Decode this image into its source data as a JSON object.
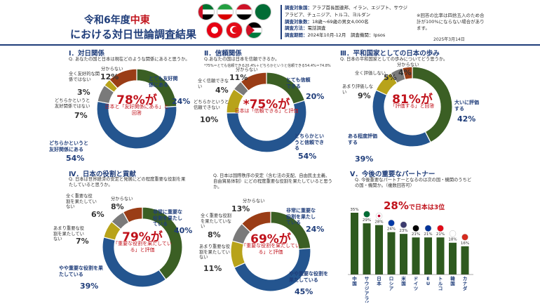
{
  "header": {
    "title_prefix": "令和6年度",
    "title_highlight": "中東",
    "title_line2": "における対日世論調査結果",
    "survey_lines": [
      {
        "label": "調査対象国：",
        "text": "アラブ首長国連邦、イラン、エジプト、サウジアラビア、チュニジア、トルコ、ヨルダン"
      },
      {
        "label": "調査対象数：",
        "text": "18歳～69歳の男女4,000名"
      },
      {
        "label": "調査方法：",
        "text": "電話調査"
      },
      {
        "label": "調査期間：",
        "text": "2024年10月-12月　調査機関：Ipsos"
      }
    ],
    "note": "※回答の比率は四捨五入のため合計が100%にならない場合があります。",
    "date": "2025年3月14日",
    "flags": [
      "uae-flag-icon",
      "iran-flag-icon",
      "egypt-flag-icon",
      "saudi-flag-icon",
      "tunisia-flag-icon",
      "turkey-flag-icon",
      "jordan-flag-icon"
    ]
  },
  "s1": {
    "title": "Ⅰ．対日関係",
    "question": "Q. あなたの国と日本は現在どのような関係にあると思うか。",
    "labels": {
      "very": "とても友好関係にある",
      "somewhat": "どちらかというと友好関係にある",
      "somewhat_not": "どちらかというと友好関係ではない",
      "not": "全く友好的な関係ではない",
      "dk": "分からない"
    },
    "center_big": "78%が",
    "center_text": "日本と「友好関係にある」と回答"
  },
  "s2": {
    "title": "Ⅱ．信頼関係",
    "question": "Q.あなたの国は日本を信頼できるか。",
    "subnote": "*75%＝とても信頼できる20.4%＋どちらかというと信頼できる54.4%＝74.8%",
    "labels": {
      "very": "とても信頼できる",
      "somewhat": "どちらかというと信頼できる",
      "somewhat_not": "どちらかというと信頼できない",
      "not": "全く信頼できない",
      "dk": "分からない"
    },
    "center_big": "*75%が",
    "center_text": "日本は「信頼できる」と評価"
  },
  "s3": {
    "title": "Ⅲ．平和国家としての日本の歩み",
    "question": "Q. 日本の平和国家としての歩みについてどう思うか。",
    "labels": {
      "high": "大いに評価する",
      "some": "ある程度評価する",
      "little": "あまり評価しない",
      "not": "全く評価しない",
      "dk": "分からない"
    },
    "center_big": "81%が",
    "center_text": "「評価する」と回答"
  },
  "s4": {
    "title": "Ⅳ．日本の役割と貢献",
    "question1": "Q. 日本は世界経済の安定と発展にどの程度重要な役割を果たしていると思うか。",
    "question2": "Q. 日本は国際秩序の安定（含む法の支配、自由民主主義、自由貿易体制）にどの程度重要な役割を果たしていると思うか。",
    "labels": {
      "very": "非常に重要な役割を果たしている",
      "some": "やや重要な役割を果たしている",
      "little": "あまり重要な役割を果たしていない",
      "not": "全く重要な役割を果たしていない",
      "dk": "分からない"
    },
    "left_center_big": "79%が",
    "left_center_text": "「重要な役割を果たしている」と評価",
    "right_center_big": "69%が",
    "right_center_text": "「重要な役割を果たしている」と評価"
  },
  "s5": {
    "title": "Ⅴ．今後の重要なパートナー",
    "question": "Q. 今後重要なパートナーとなるのは次の国・機関のうちどの国・機関か。（複数回答可）",
    "headline_big": "28%",
    "headline_text": "で日本は3位"
  },
  "chart_data": [
    {
      "type": "pie",
      "title": "Ⅰ．対日関係",
      "categories": [
        "とても友好関係にある",
        "どちらかというと友好関係にある",
        "どちらかというと友好関係ではない",
        "全く友好的な関係ではない",
        "分からない"
      ],
      "values": [
        24,
        54,
        7,
        3,
        12
      ],
      "colors": [
        "#3b5f24",
        "#24558f",
        "#7a7a7a",
        "#b8a31a",
        "#9a3d16"
      ]
    },
    {
      "type": "pie",
      "title": "Ⅱ．信頼関係",
      "categories": [
        "とても信頼できる",
        "どちらかというと信頼できる",
        "どちらかというと信頼できない",
        "全く信頼できない",
        "分からない"
      ],
      "values": [
        20,
        54,
        10,
        4,
        11
      ],
      "colors": [
        "#3b5f24",
        "#24558f",
        "#b8a31a",
        "#7a7a7a",
        "#9a3d16"
      ]
    },
    {
      "type": "pie",
      "title": "Ⅲ．平和国家としての日本の歩み",
      "categories": [
        "大いに評価する",
        "ある程度評価する",
        "あまり評価しない",
        "全く評価しない",
        "分からない"
      ],
      "values": [
        42,
        39,
        9,
        5,
        4
      ],
      "colors": [
        "#3b5f24",
        "#24558f",
        "#b8a31a",
        "#7a7a7a",
        "#9a3d16"
      ]
    },
    {
      "type": "pie",
      "title": "Ⅳ．世界経済",
      "categories": [
        "非常に重要な役割を果たしている",
        "やや重要な役割を果たしている",
        "あまり重要な役割を果たしていない",
        "全く重要な役割を果たしていない",
        "分からない"
      ],
      "values": [
        40,
        39,
        7,
        6,
        8
      ],
      "colors": [
        "#3b5f24",
        "#24558f",
        "#b8a31a",
        "#7a7a7a",
        "#9a3d16"
      ]
    },
    {
      "type": "pie",
      "title": "Ⅳ．国際秩序",
      "categories": [
        "非常に重要な役割を果たしている",
        "やや重要な役割を果たしている",
        "あまり重要な役割を果たしていない",
        "全く重要な役割を果たしていない",
        "分からない"
      ],
      "values": [
        24,
        45,
        11,
        8,
        13
      ],
      "colors": [
        "#3b5f24",
        "#24558f",
        "#b8a31a",
        "#7a7a7a",
        "#9a3d16"
      ]
    },
    {
      "type": "bar",
      "title": "Ⅴ．今後の重要なパートナー",
      "categories": [
        "中国",
        "サウジアラビア",
        "日本",
        "ロシア",
        "米国",
        "ドイツ",
        "EU",
        "トルコ",
        "韓国",
        "カナダ"
      ],
      "values": [
        35,
        29,
        28,
        24,
        23,
        21,
        21,
        21,
        18,
        16
      ],
      "highlight": "日本",
      "bar_color": "#2e5a1f"
    }
  ]
}
